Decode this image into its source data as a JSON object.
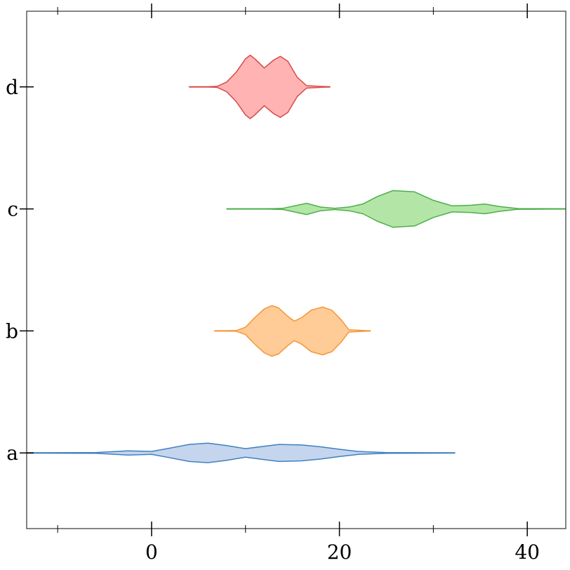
{
  "chart_data": {
    "type": "violin",
    "orientation": "horizontal",
    "categories": [
      "a",
      "b",
      "c",
      "d"
    ],
    "xlim": [
      -13.3,
      44.1
    ],
    "ylim": [
      -0.62,
      3.62
    ],
    "xticks": [
      0,
      20,
      40
    ],
    "xticks_minor": [
      -10,
      10,
      30
    ],
    "violins": [
      {
        "color": "#3f80c0",
        "fill": "#c5d5ee",
        "x": [
          -14,
          -6,
          -2.5,
          0,
          2,
          4,
          6,
          8,
          10,
          12,
          13.6,
          16,
          18,
          20,
          22,
          25,
          32.3
        ],
        "widths": [
          0,
          0.003,
          0.017,
          0.012,
          0.04,
          0.07,
          0.08,
          0.06,
          0.035,
          0.055,
          0.07,
          0.065,
          0.05,
          0.03,
          0.012,
          0.003,
          0
        ]
      },
      {
        "color": "#f5963a",
        "fill": "#ffcb96",
        "x": [
          6.7,
          9,
          10,
          11,
          12,
          12.8,
          13.5,
          14.5,
          15.2,
          16,
          17,
          18.2,
          19.2,
          20.2,
          21,
          23.3
        ],
        "widths": [
          0,
          0.003,
          0.03,
          0.11,
          0.18,
          0.207,
          0.19,
          0.12,
          0.08,
          0.11,
          0.17,
          0.196,
          0.17,
          0.09,
          0.01,
          0
        ]
      },
      {
        "color": "#4daf4a",
        "fill": "#b3e6a6",
        "x": [
          8,
          12,
          14,
          16.5,
          18,
          19.5,
          21,
          22.5,
          24,
          25.7,
          28,
          30,
          32,
          34,
          35.5,
          37,
          39,
          45
        ],
        "widths": [
          0,
          0,
          0.005,
          0.046,
          0.015,
          0.005,
          0.015,
          0.04,
          0.1,
          0.15,
          0.14,
          0.07,
          0.025,
          0.03,
          0.04,
          0.02,
          0.003,
          0
        ]
      },
      {
        "color": "#d84a4a",
        "fill": "#ffb3b3",
        "x": [
          4,
          6,
          7,
          8,
          9,
          10,
          10.5,
          11,
          12,
          13,
          13.7,
          14.5,
          15.5,
          16.5,
          19
        ],
        "widths": [
          0,
          0,
          0.005,
          0.04,
          0.12,
          0.23,
          0.26,
          0.23,
          0.155,
          0.22,
          0.25,
          0.21,
          0.08,
          0.01,
          0
        ]
      }
    ]
  }
}
